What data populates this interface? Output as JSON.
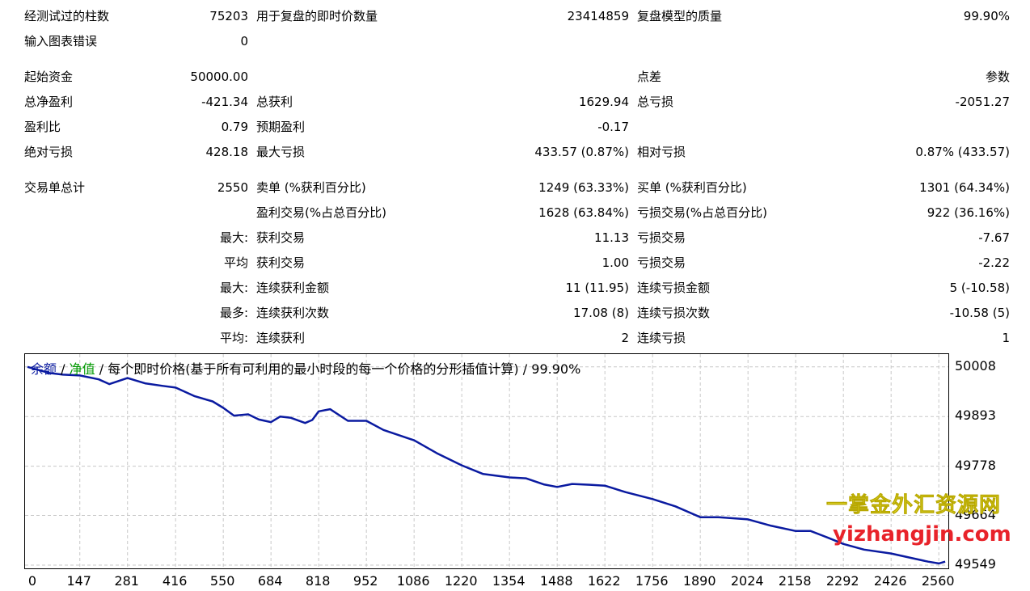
{
  "report": {
    "bars_tested": {
      "label": "经测试过的柱数",
      "value": "75203"
    },
    "ticks_modelled": {
      "label": "用于复盘的即时价数量",
      "value": "23414859"
    },
    "modelling_quality": {
      "label": "复盘模型的质量",
      "value": "99.90%"
    },
    "mismatched_errors": {
      "label": "输入图表错误",
      "value": "0"
    },
    "initial_deposit": {
      "label": "起始资金",
      "value": "50000.00"
    },
    "spread": {
      "label": "点差",
      "value": "参数"
    },
    "total_net_profit": {
      "label": "总净盈利",
      "value": "-421.34"
    },
    "gross_profit": {
      "label": "总获利",
      "value": "1629.94"
    },
    "gross_loss": {
      "label": "总亏损",
      "value": "-2051.27"
    },
    "profit_factor": {
      "label": "盈利比",
      "value": "0.79"
    },
    "expected_payoff": {
      "label": "预期盈利",
      "value": "-0.17"
    },
    "absolute_drawdown": {
      "label": "绝对亏损",
      "value": "428.18"
    },
    "maximal_drawdown": {
      "label": "最大亏损",
      "value": "433.57 (0.87%)"
    },
    "relative_drawdown": {
      "label": "相对亏损",
      "value": "0.87% (433.57)"
    },
    "total_trades": {
      "label": "交易单总计",
      "value": "2550"
    },
    "short_positions": {
      "label": "卖单 (%获利百分比)",
      "value": "1249 (63.33%)"
    },
    "long_positions": {
      "label": "买单 (%获利百分比)",
      "value": "1301 (64.34%)"
    },
    "profit_trades": {
      "label": "盈利交易(%占总百分比)",
      "value": "1628 (63.84%)"
    },
    "loss_trades": {
      "label": "亏损交易(%占总百分比)",
      "value": "922 (36.16%)"
    },
    "largest": {
      "prefix": "最大:",
      "profit_label": "获利交易",
      "profit_value": "11.13",
      "loss_label": "亏损交易",
      "loss_value": "-7.67"
    },
    "average": {
      "prefix": "平均",
      "profit_label": "获利交易",
      "profit_value": "1.00",
      "loss_label": "亏损交易",
      "loss_value": "-2.22"
    },
    "max_consecutive": {
      "prefix": "最大:",
      "profit_label": "连续获利金额",
      "profit_value": "11 (11.95)",
      "loss_label": "连续亏损金额",
      "loss_value": "5 (-10.58)"
    },
    "maximal_consecutive": {
      "prefix": "最多:",
      "profit_label": "连续获利次数",
      "profit_value": "17.08 (8)",
      "loss_label": "连续亏损次数",
      "loss_value": "-10.58 (5)"
    },
    "average_consecutive": {
      "prefix": "平均:",
      "profit_label": "连续获利",
      "profit_value": "2",
      "loss_label": "连续亏损",
      "loss_value": "1"
    }
  },
  "legend": {
    "balance": "余额",
    "equity": "净值",
    "slash": "/",
    "model": "每个即时价格(基于所有可利用的最小时段的每一个价格的分形插值计算)",
    "quality": "99.90%"
  },
  "colors": {
    "balance_line": "#0a1aa0",
    "equity_text": "#009900",
    "grid": "#c8c8c8"
  },
  "watermark": {
    "cn": "一掌金外汇资源网",
    "url": "yizhangjin.com"
  },
  "chart_data": {
    "type": "line",
    "title": "",
    "xlabel": "",
    "ylabel": "",
    "x_ticks": [
      "0",
      "147",
      "281",
      "416",
      "550",
      "684",
      "818",
      "952",
      "1086",
      "1220",
      "1354",
      "1488",
      "1622",
      "1756",
      "1890",
      "2024",
      "2158",
      "2292",
      "2426",
      "2560"
    ],
    "y_ticks": [
      "50008",
      "49893",
      "49778",
      "49664",
      "49549"
    ],
    "xlim": [
      0,
      2580
    ],
    "ylim": [
      49549,
      50030
    ],
    "grid": true,
    "series": [
      {
        "name": "余额",
        "x": [
          0,
          60,
          100,
          147,
          200,
          230,
          281,
          330,
          380,
          416,
          470,
          520,
          550,
          580,
          620,
          650,
          684,
          710,
          740,
          780,
          800,
          818,
          850,
          900,
          952,
          1000,
          1086,
          1150,
          1220,
          1280,
          1354,
          1400,
          1450,
          1488,
          1530,
          1580,
          1622,
          1680,
          1756,
          1820,
          1890,
          1940,
          2024,
          2090,
          2158,
          2200,
          2250,
          2292,
          2350,
          2426,
          2480,
          2530,
          2560,
          2578
        ],
        "values": [
          50008,
          49994,
          49990,
          49988,
          49979,
          49968,
          49982,
          49970,
          49964,
          49960,
          49940,
          49928,
          49913,
          49895,
          49898,
          49886,
          49880,
          49893,
          49890,
          49878,
          49885,
          49905,
          49910,
          49883,
          49883,
          49862,
          49838,
          49808,
          49780,
          49760,
          49752,
          49750,
          49736,
          49730,
          49737,
          49735,
          49733,
          49718,
          49702,
          49685,
          49660,
          49660,
          49655,
          49640,
          49628,
          49628,
          49612,
          49598,
          49585,
          49576,
          49566,
          49557,
          49553,
          49557
        ]
      }
    ]
  }
}
